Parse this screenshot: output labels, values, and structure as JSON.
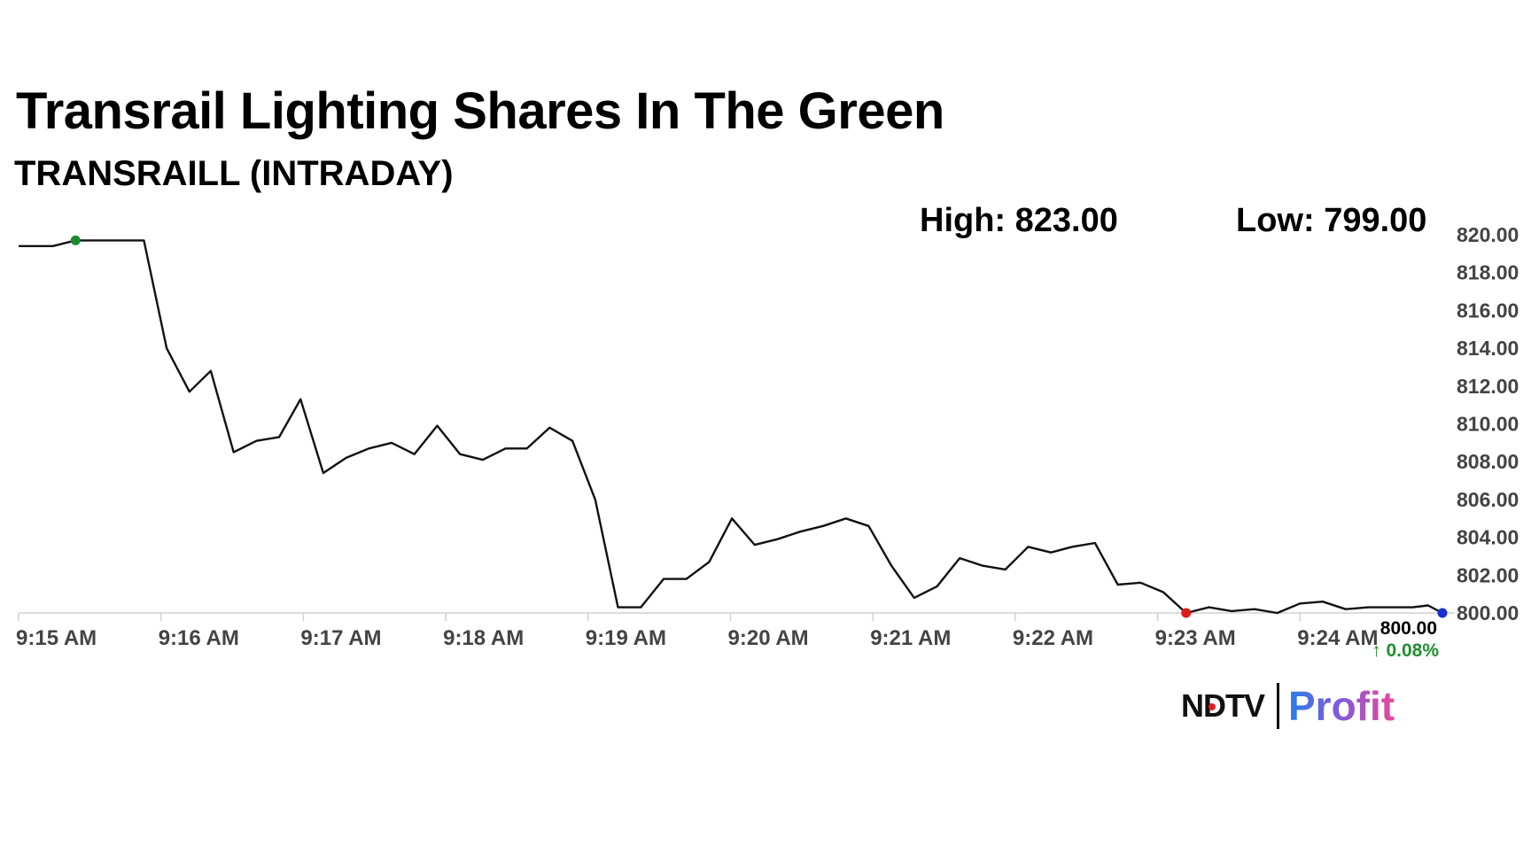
{
  "chart_data": {
    "type": "line",
    "title": "Transrail Lighting Shares In The Green",
    "subtitle": "TRANSRAILL (INTRADAY)",
    "stats": {
      "high": "High: 823.00",
      "low": "Low: 799.00"
    },
    "y_ticks": [
      "820.00",
      "818.00",
      "816.00",
      "814.00",
      "812.00",
      "810.00",
      "808.00",
      "806.00",
      "804.00",
      "802.00",
      "800.00"
    ],
    "ylim": [
      800,
      820
    ],
    "x_ticks": [
      "9:15 AM",
      "9:16 AM",
      "9:17 AM",
      "9:18 AM",
      "9:19 AM",
      "9:20 AM",
      "9:21 AM",
      "9:22 AM",
      "9:23 AM",
      "9:24 AM"
    ],
    "xlim_minutes": [
      0,
      10
    ],
    "series": [
      {
        "x": [
          0.0,
          0.24,
          0.4,
          0.72,
          0.88,
          1.04,
          1.2,
          1.35,
          1.51,
          1.67,
          1.83,
          1.98,
          2.14,
          2.3,
          2.46,
          2.62,
          2.78,
          2.94,
          3.1,
          3.26,
          3.42,
          3.57,
          3.73,
          3.89,
          4.05,
          4.21,
          4.37,
          4.53,
          4.69,
          4.85,
          5.01,
          5.17,
          5.33,
          5.49,
          5.65,
          5.81,
          5.97,
          6.13,
          6.29,
          6.45,
          6.61,
          6.77,
          6.93,
          7.09,
          7.25,
          7.4,
          7.56,
          7.72,
          7.88,
          8.04,
          8.2,
          8.36,
          8.52,
          8.68,
          8.84,
          9.0,
          9.16,
          9.32,
          9.48,
          9.64,
          9.79,
          9.9,
          10.0
        ],
        "values": [
          819.4,
          819.4,
          819.7,
          819.7,
          819.7,
          814.0,
          811.7,
          812.8,
          808.5,
          809.1,
          809.3,
          811.3,
          807.4,
          808.2,
          808.7,
          809.0,
          808.4,
          809.9,
          808.4,
          808.1,
          808.7,
          808.7,
          809.8,
          809.1,
          806.0,
          800.3,
          800.3,
          801.8,
          801.8,
          802.7,
          805.0,
          803.6,
          803.9,
          804.3,
          804.6,
          805.0,
          804.6,
          802.5,
          800.8,
          801.4,
          802.9,
          802.5,
          802.3,
          803.5,
          803.2,
          803.5,
          803.7,
          801.5,
          801.6,
          801.1,
          800.0,
          800.3,
          800.1,
          800.2,
          800.0,
          800.5,
          800.6,
          800.2,
          800.3,
          800.3,
          800.3,
          800.4,
          800.0
        ]
      }
    ],
    "markers": [
      {
        "x": 0.4,
        "value": 819.7,
        "color": "#1a8a2a"
      },
      {
        "x": 8.2,
        "value": 800.0,
        "color": "#e01b1b"
      },
      {
        "x": 10.0,
        "value": 800.0,
        "color": "#1a2fd4"
      }
    ],
    "last_price": "800.00",
    "change": "↑ 0.08%",
    "line_color": "#111111",
    "change_color": "#1f8f2e"
  },
  "brand": {
    "ndtv": "NDTV",
    "profit": "Profit"
  }
}
